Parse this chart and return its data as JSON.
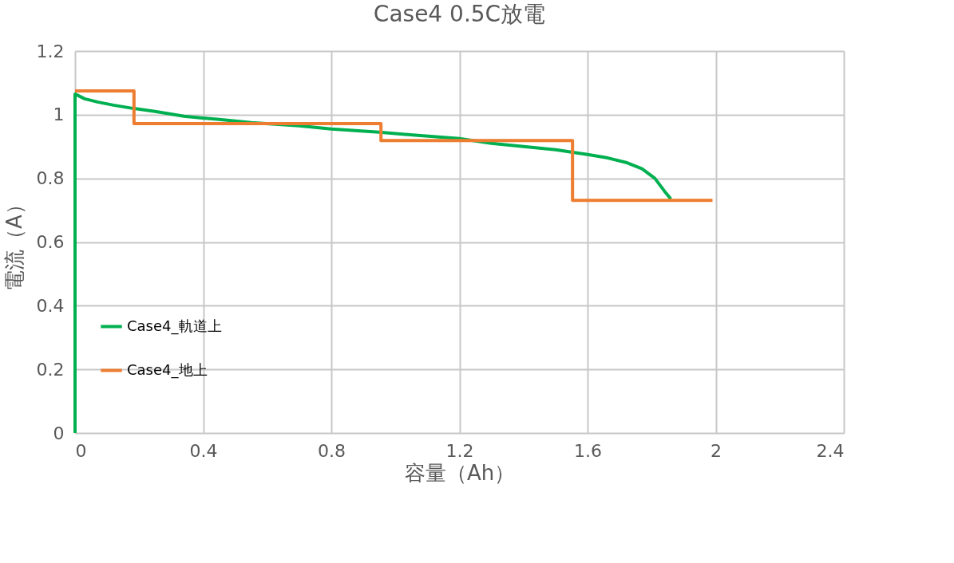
{
  "chart_data": {
    "type": "line",
    "title": "Case4 0.5C放電",
    "xlabel": "容量（Ah）",
    "ylabel": "電流（A）",
    "xlim": [
      0,
      2.4
    ],
    "xticks": [
      0,
      0.4,
      0.8,
      1.2,
      1.6,
      2,
      2.4
    ],
    "ylim": [
      0,
      1.2
    ],
    "yticks": [
      0,
      0.2,
      0.4,
      0.6,
      0.8,
      1,
      1.2
    ],
    "grid": true,
    "legend": "bottom left",
    "line_style": "solid",
    "marker": "none",
    "series": [
      {
        "name": "Case4_軌道上",
        "color": "#00b050",
        "x": [
          0,
          0,
          0.03,
          0.07,
          0.12,
          0.18,
          0.25,
          0.34,
          0.45,
          0.55,
          0.7,
          0.8,
          0.95,
          1.07,
          1.2,
          1.3,
          1.4,
          1.5,
          1.6,
          1.66,
          1.72,
          1.77,
          1.81,
          1.84,
          1.86
        ],
        "values": [
          0,
          1.065,
          1.05,
          1.04,
          1.03,
          1.02,
          1.01,
          0.995,
          0.985,
          0.975,
          0.965,
          0.955,
          0.945,
          0.935,
          0.925,
          0.91,
          0.9,
          0.89,
          0.875,
          0.865,
          0.85,
          0.83,
          0.8,
          0.76,
          0.735
        ]
      },
      {
        "name": "Case4_地上",
        "color": "#ed7d31",
        "x": [
          0,
          0.184,
          0.184,
          0.955,
          0.955,
          1.553,
          1.553,
          1.99
        ],
        "values": [
          1.075,
          1.075,
          0.972,
          0.972,
          0.919,
          0.919,
          0.731,
          0.731
        ]
      }
    ]
  }
}
